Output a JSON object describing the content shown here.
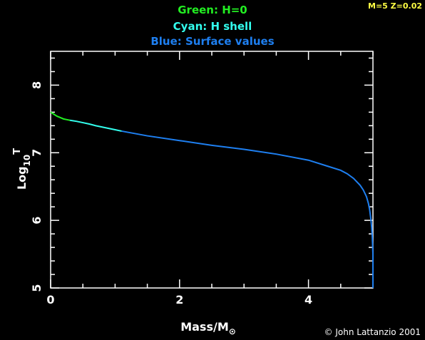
{
  "corner_label": "M=5 Z=0.02",
  "credit": "© John Lattanzio 2001",
  "colors": {
    "background": "#000000",
    "green": "#22ee22",
    "cyan": "#33ffee",
    "blue": "#1e7ff0",
    "corner": "#ffff44",
    "axes": "#ffffff"
  },
  "chart_data": {
    "type": "line",
    "legend": [
      {
        "text": "Green: H=0",
        "color": "#22ee22"
      },
      {
        "text": "Cyan: H shell",
        "color": "#33ffee"
      },
      {
        "text": "Blue: Surface values",
        "color": "#1e7ff0"
      }
    ],
    "xlabel_main": "Mass/M",
    "xlabel_sub": "⊙",
    "ylabel_main": "Log",
    "ylabel_sub": "10",
    "ylabel_sup": "T",
    "xlim": [
      0,
      5
    ],
    "ylim": [
      5,
      8.5
    ],
    "xticks": [
      0,
      2,
      4
    ],
    "yticks": [
      5,
      6,
      7,
      8
    ],
    "series": [
      {
        "color": "#22ee22",
        "x": [
          0.0,
          0.05,
          0.1,
          0.15,
          0.2,
          0.25,
          0.3
        ],
        "y": [
          7.6,
          7.57,
          7.54,
          7.52,
          7.5,
          7.49,
          7.48
        ]
      },
      {
        "color": "#33ffee",
        "x": [
          0.3,
          0.4,
          0.5,
          0.6,
          0.7,
          0.8,
          0.9,
          1.0,
          1.1
        ],
        "y": [
          7.48,
          7.465,
          7.445,
          7.425,
          7.4,
          7.38,
          7.36,
          7.34,
          7.32
        ]
      },
      {
        "color": "#1e7ff0",
        "x": [
          1.1,
          1.5,
          2.0,
          2.5,
          3.0,
          3.5,
          4.0,
          4.3,
          4.5,
          4.6,
          4.7,
          4.8,
          4.85,
          4.9,
          4.93,
          4.95,
          4.97,
          4.98,
          4.99,
          5.0,
          5.0
        ],
        "y": [
          7.32,
          7.25,
          7.18,
          7.11,
          7.05,
          6.98,
          6.89,
          6.8,
          6.74,
          6.69,
          6.62,
          6.52,
          6.45,
          6.35,
          6.25,
          6.15,
          6.0,
          5.9,
          5.75,
          5.5,
          5.0
        ]
      }
    ]
  }
}
